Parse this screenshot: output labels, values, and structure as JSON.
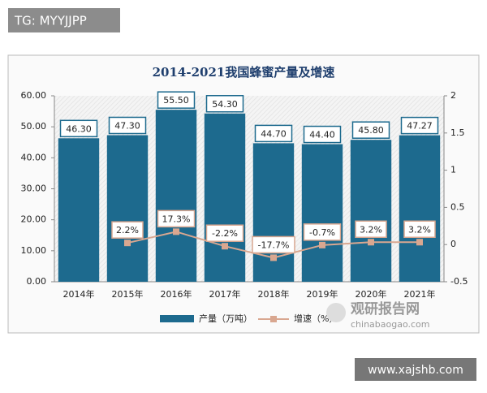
{
  "overlays": {
    "top_left": "TG: MYYJJPP",
    "bottom_right": "www.xajshb.com",
    "logo_name": "观研报告网",
    "logo_url": "chinabaogao.com"
  },
  "chart_data": {
    "type": "bar-line",
    "title": "2014-2021我国蜂蜜产量及增速",
    "categories": [
      "2014年",
      "2015年",
      "2016年",
      "2017年",
      "2018年",
      "2019年",
      "2020年",
      "2021年"
    ],
    "series": [
      {
        "name": "产量（万吨）",
        "type": "bar",
        "color": "#1d6a8e",
        "values": [
          46.3,
          47.3,
          55.5,
          54.3,
          44.7,
          44.4,
          45.8,
          47.27
        ],
        "value_labels": [
          "46.30",
          "47.30",
          "55.50",
          "54.30",
          "44.70",
          "44.40",
          "45.80",
          "47.27"
        ]
      },
      {
        "name": "增速（%）",
        "type": "line",
        "axis": "y2",
        "color": "#d9a790",
        "values": [
          null,
          0.022,
          0.173,
          -0.022,
          -0.177,
          -0.007,
          0.032,
          0.032
        ],
        "value_labels": [
          null,
          "2.2%",
          "17.3%",
          "-2.2%",
          "-17.7%",
          "-0.7%",
          "3.2%",
          "3.2%"
        ]
      }
    ],
    "ylim": [
      0,
      60
    ],
    "yticks": [
      {
        "value": 0,
        "label": "0.00"
      },
      {
        "value": 10,
        "label": "10.00"
      },
      {
        "value": 20,
        "label": "20.00"
      },
      {
        "value": 30,
        "label": "30.00"
      },
      {
        "value": 40,
        "label": "40.00"
      },
      {
        "value": 50,
        "label": "50.00"
      },
      {
        "value": 60,
        "label": "60.00"
      }
    ],
    "y2lim": [
      -0.5,
      2
    ],
    "y2ticks": [
      -0.5,
      0,
      0.5,
      1,
      1.5,
      2
    ]
  }
}
